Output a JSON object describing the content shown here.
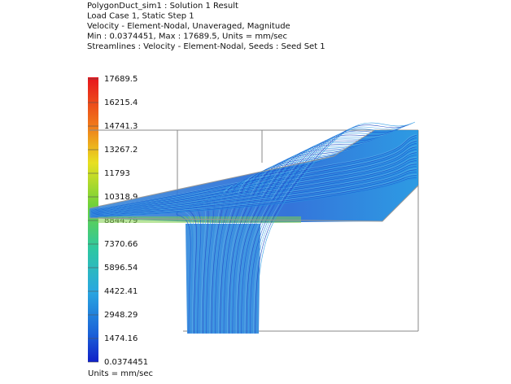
{
  "header": {
    "lines": [
      "PolygonDuct_sim1 : Solution 1 Result",
      "Load Case 1, Static Step 1",
      "Velocity - Element-Nodal, Unaveraged, Magnitude",
      "Min : 0.0374451, Max : 17689.5, Units = mm/sec",
      "Streamlines : Velocity - Element-Nodal, Seeds : Seed Set 1"
    ]
  },
  "legend": {
    "labels": [
      "17689.5",
      "16215.4",
      "14741.3",
      "13267.2",
      "11793",
      "10318.9",
      "8844.79",
      "7370.66",
      "5896.54",
      "4422.41",
      "2948.29",
      "1474.16",
      "0.0374451"
    ],
    "units": "Units = mm/sec"
  }
}
